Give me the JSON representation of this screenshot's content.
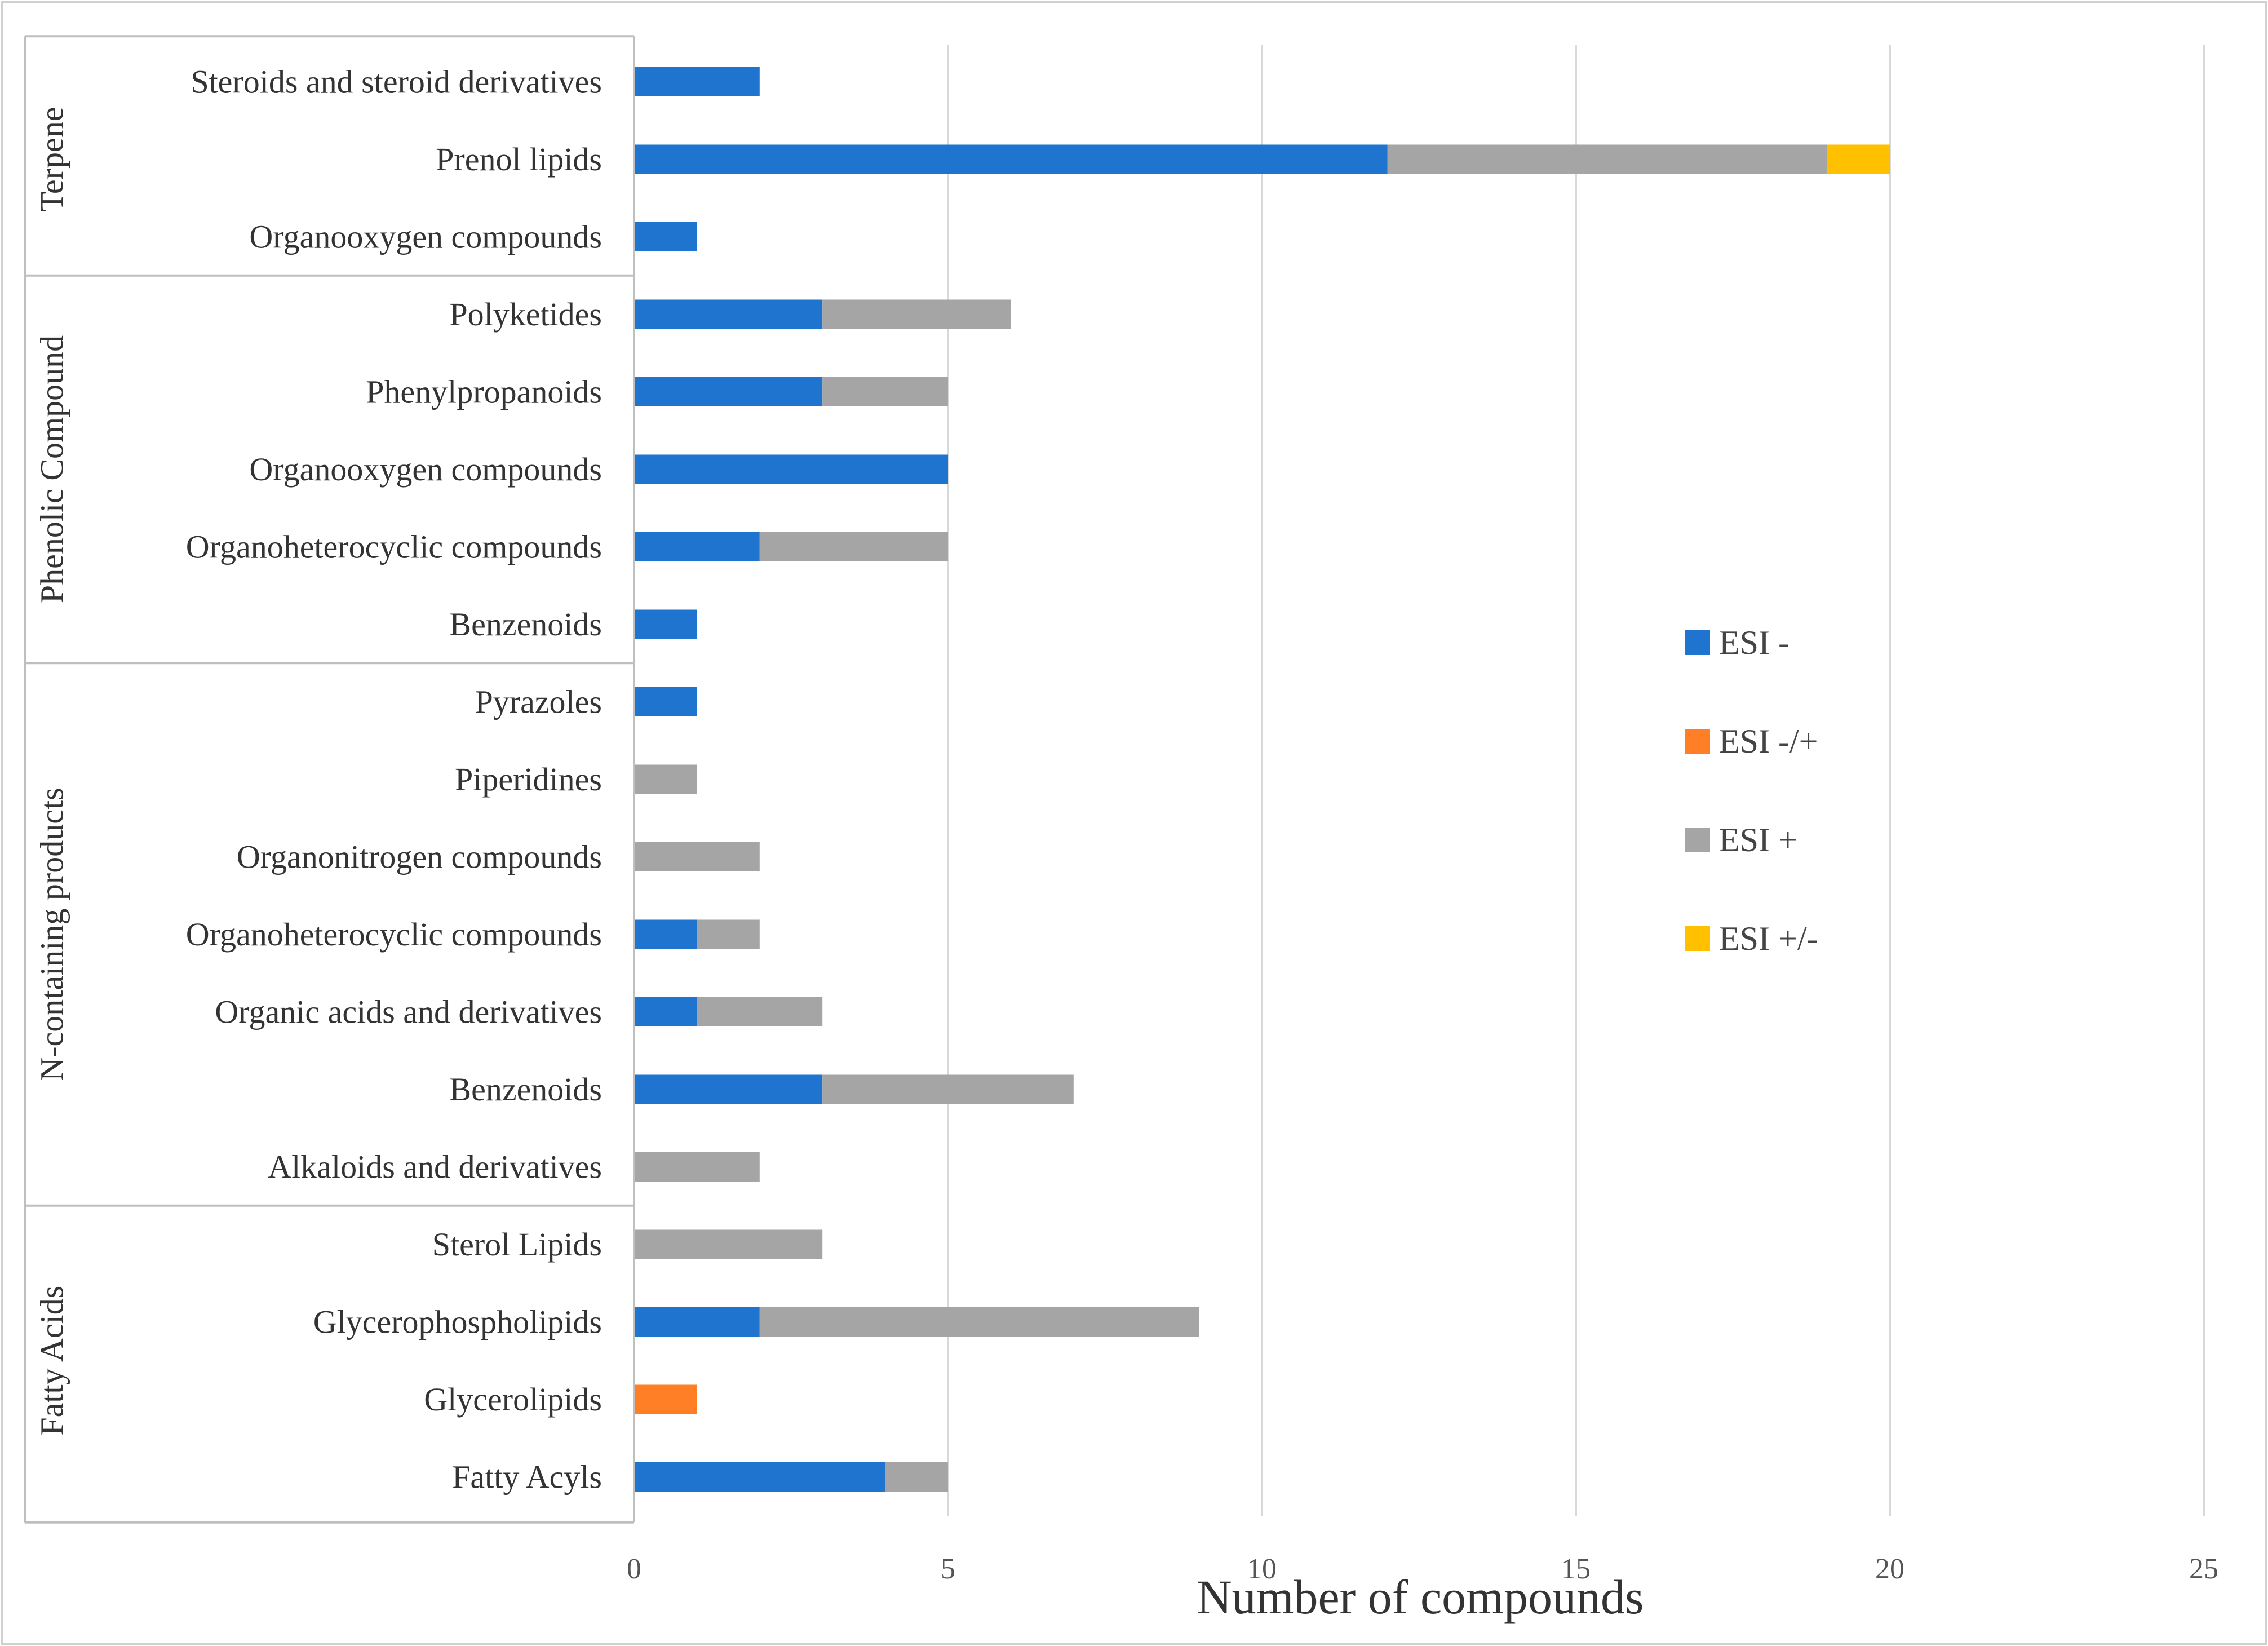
{
  "chart_data": {
    "type": "bar",
    "orientation": "horizontal",
    "stacked": true,
    "title": "",
    "xlabel": "Number of compounds",
    "ylabel": "",
    "xlim": [
      0,
      25
    ],
    "x_ticks": [
      0,
      5,
      10,
      15,
      20,
      25
    ],
    "grid": "vertical",
    "legend_position": "right",
    "categories": [
      "Steroids and steroid derivatives",
      "Prenol lipids",
      "Organooxygen compounds",
      "Polyketides",
      "Phenylpropanoids",
      "Organooxygen compounds",
      "Organoheterocyclic compounds",
      "Benzenoids",
      "Pyrazoles",
      "Piperidines",
      "Organonitrogen compounds",
      "Organoheterocyclic compounds",
      "Organic acids and derivatives",
      "Benzenoids",
      "Alkaloids and derivatives",
      "Sterol Lipids",
      "Glycerophospholipids",
      "Glycerolipids",
      "Fatty Acyls"
    ],
    "groups": [
      {
        "name": "Terpene",
        "start": 0,
        "count": 3
      },
      {
        "name": "Phenolic Compound",
        "start": 3,
        "count": 5
      },
      {
        "name": "N-containing products",
        "start": 8,
        "count": 7
      },
      {
        "name": "Fatty Acids",
        "start": 15,
        "count": 4
      }
    ],
    "series": [
      {
        "name": "ESI -",
        "color": "#1f74cf",
        "values": [
          2,
          12,
          1,
          3,
          3,
          5,
          2,
          1,
          1,
          0,
          0,
          1,
          1,
          3,
          0,
          0,
          2,
          0,
          4
        ]
      },
      {
        "name": "ESI -/+",
        "color": "#ff7f27",
        "values": [
          0,
          0,
          0,
          0,
          0,
          0,
          0,
          0,
          0,
          0,
          0,
          0,
          0,
          0,
          0,
          0,
          0,
          1,
          0
        ]
      },
      {
        "name": "ESI +",
        "color": "#a5a5a5",
        "values": [
          0,
          7,
          0,
          3,
          2,
          0,
          3,
          0,
          0,
          1,
          2,
          1,
          2,
          4,
          2,
          3,
          7,
          0,
          1
        ]
      },
      {
        "name": "ESI +/-",
        "color": "#ffc000",
        "values": [
          0,
          1,
          0,
          0,
          0,
          0,
          0,
          0,
          0,
          0,
          0,
          0,
          0,
          0,
          0,
          0,
          0,
          0,
          0
        ]
      }
    ]
  }
}
